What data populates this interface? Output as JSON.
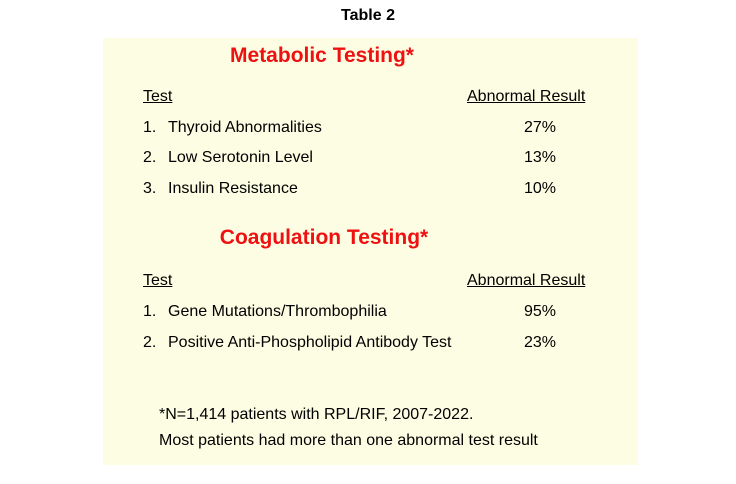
{
  "header": {
    "title": "Table 2"
  },
  "sections": [
    {
      "title": "Metabolic Testing*",
      "columns": [
        "Test",
        "Abnormal Result"
      ],
      "rows": [
        [
          "1.",
          "Thyroid Abnormalities",
          "27%"
        ],
        [
          "2.",
          "Low Serotonin Level",
          "13%"
        ],
        [
          "3.",
          "Insulin Resistance",
          "10%"
        ]
      ]
    },
    {
      "title": "Coagulation Testing*",
      "columns": [
        "Test",
        "Abnormal Result"
      ],
      "rows": [
        [
          "1.",
          "Gene Mutations/Thrombophilia",
          "95%"
        ],
        [
          "2.",
          "Positive Anti-Phospholipid Antibody Test",
          "23%"
        ]
      ]
    }
  ],
  "footnote": [
    "*N=1,414 patients with RPL/RIF, 2007-2022.",
    "Most patients had more than one abnormal test result"
  ]
}
